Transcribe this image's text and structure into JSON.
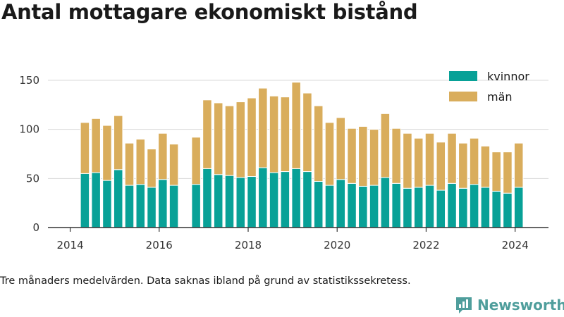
{
  "chart_data": {
    "type": "bar",
    "stacked": true,
    "title": "Antal mottagare ekonomiskt bistånd",
    "xlabel": "",
    "ylabel": "",
    "xlim": [
      2013.5,
      2024.75
    ],
    "ylim": [
      0,
      160
    ],
    "x_ticks": [
      2014,
      2016,
      2018,
      2020,
      2022,
      2024
    ],
    "y_ticks": [
      0,
      50,
      100,
      150
    ],
    "grid": "horizontal",
    "legend": "top-right",
    "x": [
      2014.33,
      2014.58,
      2014.83,
      2015.08,
      2015.33,
      2015.58,
      2015.83,
      2016.08,
      2016.33,
      2016.83,
      2017.08,
      2017.33,
      2017.58,
      2017.83,
      2018.08,
      2018.33,
      2018.58,
      2018.83,
      2019.08,
      2019.33,
      2019.58,
      2019.83,
      2020.08,
      2020.33,
      2020.58,
      2020.83,
      2021.08,
      2021.33,
      2021.58,
      2021.83,
      2022.08,
      2022.33,
      2022.58,
      2022.83,
      2023.08,
      2023.33,
      2023.58,
      2023.83,
      2024.08
    ],
    "series": [
      {
        "name": "kvinnor",
        "color": "#08a197",
        "values": [
          55,
          56,
          48,
          59,
          43,
          44,
          41,
          49,
          43,
          44,
          60,
          54,
          53,
          51,
          52,
          61,
          56,
          57,
          60,
          57,
          47,
          43,
          49,
          45,
          42,
          43,
          51,
          45,
          40,
          41,
          43,
          38,
          45,
          40,
          44,
          41,
          37,
          35,
          41
        ]
      },
      {
        "name": "män",
        "color": "#d9ad5c",
        "values": [
          52,
          55,
          56,
          55,
          43,
          46,
          39,
          47,
          42,
          48,
          70,
          73,
          71,
          77,
          80,
          81,
          78,
          76,
          88,
          80,
          77,
          64,
          63,
          56,
          61,
          57,
          65,
          56,
          56,
          50,
          53,
          49,
          51,
          46,
          47,
          42,
          40,
          42,
          45
        ]
      }
    ]
  },
  "footnote": "Tre månaders medelvärden. Data saknas ibland på grund av statistikssekretess.",
  "brand": {
    "name": "Newsworthy",
    "icon": "newsworthy-logo-icon",
    "color": "#4f9e9c"
  }
}
